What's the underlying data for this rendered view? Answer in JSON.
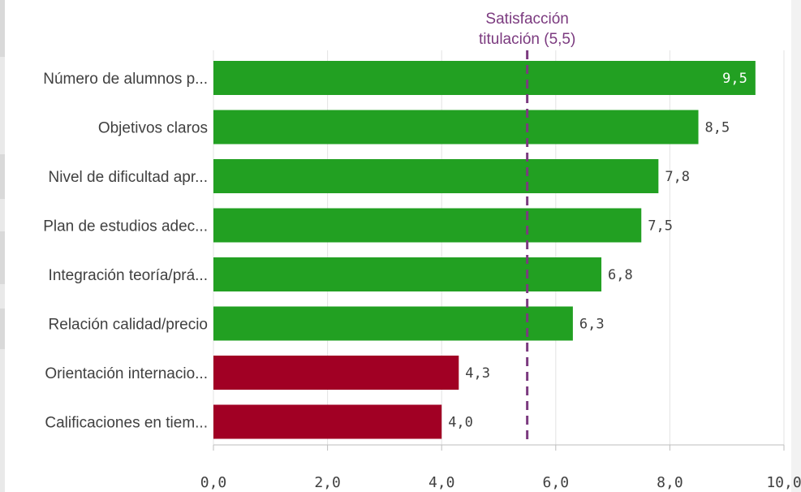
{
  "chart_data": {
    "type": "bar",
    "orientation": "horizontal",
    "categories": [
      "Número de alumnos p...",
      "Objetivos claros",
      "Nivel de dificultad apr...",
      "Plan de estudios adec...",
      "Integración teoría/prá...",
      "Relación calidad/precio",
      "Orientación internacio...",
      "Calificaciones en tiem..."
    ],
    "values": [
      9.5,
      8.5,
      7.8,
      7.5,
      6.8,
      6.3,
      4.3,
      4.0
    ],
    "value_labels": [
      "9,5",
      "8,5",
      "7,8",
      "7,5",
      "6,8",
      "6,3",
      "4,3",
      "4,0"
    ],
    "bar_colors": [
      "#22a022",
      "#22a022",
      "#22a022",
      "#22a022",
      "#22a022",
      "#22a022",
      "#a10024",
      "#a10024"
    ],
    "xlim": [
      0,
      10
    ],
    "ticks": [
      0,
      2,
      4,
      6,
      8,
      10
    ],
    "tick_labels": [
      "0,0",
      "2,0",
      "4,0",
      "6,0",
      "8,0",
      "10,0"
    ],
    "grid": true,
    "reference_line": {
      "value": 5.5,
      "label_line1": "Satisfacción",
      "label_line2": "titulación (5,5)",
      "color": "#7b3a7f"
    }
  }
}
